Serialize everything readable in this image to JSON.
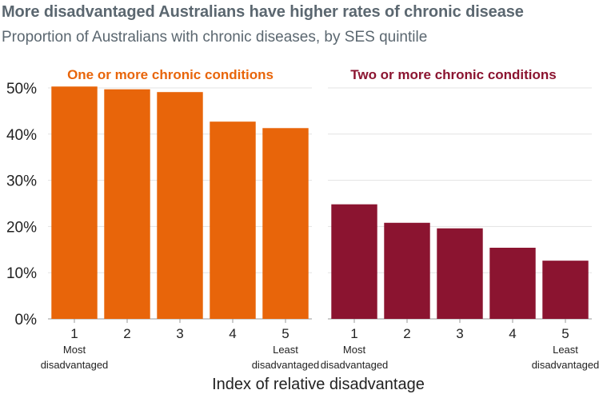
{
  "header": {
    "title": "More disadvantaged Australians have higher rates of chronic disease",
    "subtitle": "Proportion of Australians with chronic diseases, by SES quintile"
  },
  "colors": {
    "panel1": "#e8650a",
    "panel2": "#8b1430",
    "grid": "#e3e3e3",
    "text": "#5b6770"
  },
  "chart_data": [
    {
      "type": "bar",
      "title": "One or more chronic conditions",
      "categories": [
        "1",
        "2",
        "3",
        "4",
        "5"
      ],
      "category_sublabels": [
        "Most disadvantaged",
        "",
        "",
        "",
        "Least disadvantaged"
      ],
      "values": [
        50.3,
        49.7,
        49.1,
        42.7,
        41.3
      ],
      "xlabel": "Index of relative disadvantage",
      "ylabel": "",
      "ylim": [
        0,
        50
      ],
      "yticks": [
        "0%",
        "10%",
        "20%",
        "30%",
        "40%",
        "50%"
      ],
      "grid": true
    },
    {
      "type": "bar",
      "title": "Two or more chronic conditions",
      "categories": [
        "1",
        "2",
        "3",
        "4",
        "5"
      ],
      "category_sublabels": [
        "Most disadvantaged",
        "",
        "",
        "",
        "Least disadvantaged"
      ],
      "values": [
        24.8,
        20.8,
        19.6,
        15.4,
        12.6
      ],
      "xlabel": "Index of relative disadvantage",
      "ylabel": "",
      "ylim": [
        0,
        50
      ],
      "grid": true
    }
  ]
}
